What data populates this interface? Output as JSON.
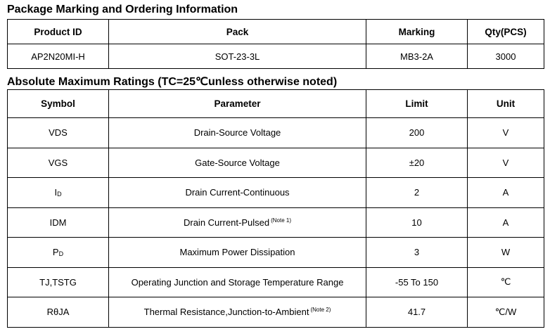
{
  "ordering": {
    "title": "Package Marking and Ordering Information",
    "headers": [
      "Product ID",
      "Pack",
      "Marking",
      "Qty(PCS)"
    ],
    "rows": [
      [
        "AP2N20MI-H",
        "SOT-23-3L",
        "MB3-2A",
        "3000"
      ]
    ]
  },
  "ratings": {
    "title": "Absolute Maximum Ratings (TC=25℃unless otherwise noted)",
    "headers": [
      "Symbol",
      "Parameter",
      "Limit",
      "Unit"
    ],
    "rows": [
      {
        "symbol": "VDS",
        "parameter": "Drain-Source Voltage",
        "limit": "200",
        "unit": "V"
      },
      {
        "symbol": "VGS",
        "parameter": "Gate-Source Voltage",
        "limit": "±20",
        "unit": "V"
      },
      {
        "symbol": "I",
        "symbol_sub": "D",
        "parameter": "Drain Current-Continuous",
        "limit": "2",
        "unit": "A"
      },
      {
        "symbol": "IDM",
        "parameter": "Drain Current-Pulsed",
        "note": "(Note 1)",
        "limit": "10",
        "unit": "A"
      },
      {
        "symbol": "P",
        "symbol_sub": "D",
        "parameter": "Maximum Power Dissipation",
        "limit": "3",
        "unit": "W"
      },
      {
        "symbol": "TJ,TSTG",
        "parameter": "Operating Junction and Storage Temperature Range",
        "limit": "-55 To 150",
        "unit": "℃"
      },
      {
        "symbol": "RθJA",
        "parameter": "Thermal Resistance,Junction-to-Ambient",
        "note": "(Note 2)",
        "limit": "41.7",
        "unit": "℃/W"
      }
    ]
  }
}
